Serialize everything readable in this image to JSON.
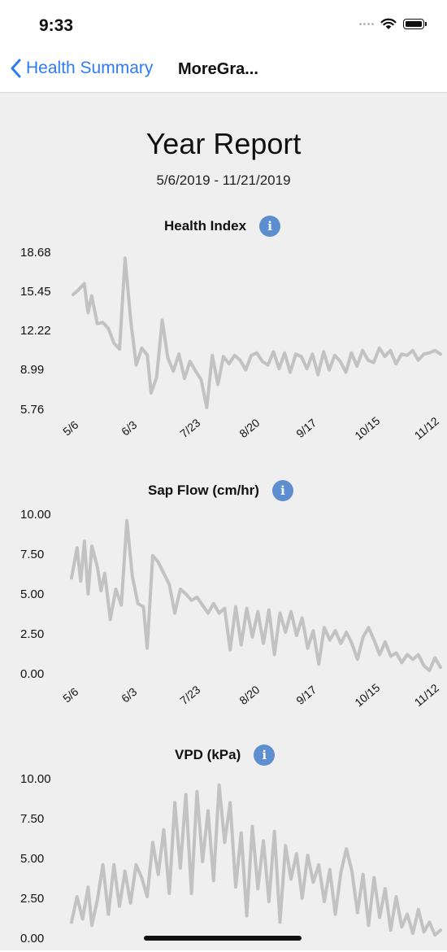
{
  "status_bar": {
    "time": "9:33",
    "icons": [
      "signal-icon",
      "wifi-icon",
      "battery-icon"
    ]
  },
  "nav": {
    "back_label": "Health Summary",
    "title": "MoreGra...",
    "back_color": "#2d7cf6"
  },
  "report": {
    "title": "Year Report",
    "date_range": "5/6/2019 - 11/21/2019"
  },
  "info_icon_glyph": "i",
  "chart_data": [
    {
      "type": "line",
      "title": "Health Index",
      "color": "#c2c2c2",
      "x_tick_labels": [
        "5/6",
        "6/3",
        "7/23",
        "8/20",
        "9/17",
        "10/15",
        "11/12"
      ],
      "y_tick_labels": [
        "18.68",
        "15.45",
        "12.22",
        "8.99",
        "5.76"
      ],
      "ylim": [
        5.76,
        18.68
      ],
      "x": [
        0,
        3,
        6,
        8,
        10,
        13,
        16,
        19,
        22,
        25,
        28,
        31,
        34,
        37,
        40,
        42,
        45,
        48,
        51,
        54,
        57,
        60,
        63,
        66,
        69,
        72,
        75,
        78,
        81,
        84,
        87,
        90,
        93,
        96,
        99,
        102,
        105,
        108,
        111,
        114,
        117,
        120,
        123,
        126,
        129,
        132,
        135,
        138,
        141,
        144,
        147,
        150,
        153,
        156,
        159,
        162,
        165,
        168,
        171,
        174,
        177,
        180,
        183,
        186,
        189,
        192,
        195,
        198
      ],
      "y": [
        15.2,
        15.6,
        16.1,
        13.7,
        15.1,
        12.8,
        12.9,
        12.4,
        11.2,
        10.7,
        18.2,
        13.1,
        9.4,
        10.8,
        10.2,
        7.1,
        8.4,
        13.1,
        10.0,
        8.9,
        10.3,
        8.3,
        9.7,
        8.9,
        8.2,
        5.9,
        10.2,
        7.8,
        10.1,
        9.5,
        10.2,
        9.8,
        9.0,
        10.2,
        10.4,
        9.7,
        9.4,
        10.5,
        9.1,
        10.4,
        8.8,
        10.3,
        10.1,
        9.1,
        10.3,
        8.6,
        10.5,
        9.0,
        10.2,
        9.7,
        8.8,
        10.4,
        9.3,
        10.6,
        9.8,
        9.6,
        10.8,
        10.1,
        10.6,
        9.5,
        10.3,
        10.2,
        10.6,
        9.8,
        10.3,
        10.4,
        10.6,
        10.3
      ]
    },
    {
      "type": "line",
      "title": "Sap Flow (cm/hr)",
      "color": "#c2c2c2",
      "x_tick_labels": [
        "5/6",
        "6/3",
        "7/23",
        "8/20",
        "9/17",
        "10/15",
        "11/12"
      ],
      "y_tick_labels": [
        "10.00",
        "7.50",
        "5.00",
        "2.50",
        "0.00"
      ],
      "ylim": [
        0,
        10
      ],
      "x": [
        0,
        3,
        5,
        7,
        9,
        11,
        14,
        16,
        18,
        21,
        24,
        27,
        30,
        33,
        36,
        39,
        41,
        44,
        47,
        50,
        53,
        56,
        59,
        62,
        65,
        68,
        71,
        74,
        77,
        80,
        83,
        86,
        89,
        92,
        95,
        98,
        101,
        104,
        107,
        110,
        113,
        116,
        119,
        122,
        125,
        128,
        131,
        134,
        137,
        140,
        143,
        146,
        149,
        152,
        155,
        158,
        161,
        164,
        167,
        170,
        173,
        176,
        179,
        182,
        185,
        188,
        191,
        194,
        197,
        200
      ],
      "y": [
        6.0,
        7.9,
        5.8,
        8.3,
        5.0,
        8.0,
        6.7,
        5.2,
        6.3,
        3.4,
        5.3,
        4.3,
        9.6,
        6.1,
        4.4,
        4.2,
        1.6,
        7.4,
        7.0,
        6.3,
        5.6,
        3.8,
        5.3,
        5.0,
        4.6,
        4.8,
        4.3,
        3.8,
        4.4,
        3.8,
        4.1,
        1.5,
        4.2,
        1.8,
        4.1,
        2.3,
        3.9,
        1.9,
        4.0,
        1.2,
        3.8,
        2.6,
        3.9,
        2.4,
        3.5,
        1.6,
        2.7,
        0.6,
        2.9,
        2.1,
        2.7,
        1.9,
        2.6,
        1.9,
        0.9,
        2.3,
        2.9,
        2.1,
        1.2,
        2.0,
        1.1,
        1.3,
        0.7,
        1.2,
        0.9,
        1.2,
        0.5,
        0.2,
        1.0,
        0.4
      ]
    },
    {
      "type": "line",
      "title": "VPD (kPa)",
      "color": "#c2c2c2",
      "x_tick_labels": [],
      "y_tick_labels": [
        "10.00",
        "7.50",
        "5.00",
        "2.50",
        "0.00"
      ],
      "ylim": [
        0,
        10
      ],
      "x": [
        0,
        3,
        6,
        9,
        11,
        14,
        17,
        20,
        23,
        26,
        29,
        32,
        35,
        38,
        41,
        44,
        47,
        50,
        53,
        56,
        59,
        62,
        65,
        68,
        71,
        74,
        77,
        80,
        83,
        86,
        89,
        92,
        95,
        98,
        101,
        104,
        107,
        110,
        113,
        116,
        119,
        122,
        125,
        128,
        131,
        134,
        137,
        140,
        143,
        146,
        149,
        152,
        155,
        158,
        161,
        164,
        167,
        170,
        173,
        176,
        179,
        182,
        185,
        188,
        191,
        194,
        197,
        200
      ],
      "y": [
        1.0,
        2.6,
        1.2,
        3.2,
        0.8,
        2.4,
        4.6,
        1.5,
        4.6,
        2.0,
        4.2,
        2.2,
        4.6,
        3.8,
        2.6,
        6.0,
        4.0,
        6.8,
        2.8,
        8.5,
        4.4,
        9.0,
        2.8,
        9.2,
        4.8,
        8.0,
        3.6,
        9.6,
        6.0,
        8.5,
        3.2,
        6.6,
        1.4,
        7.0,
        3.1,
        6.1,
        2.3,
        6.7,
        1.0,
        5.8,
        3.7,
        5.3,
        2.5,
        5.2,
        3.5,
        4.6,
        2.3,
        4.3,
        1.5,
        4.1,
        5.6,
        4.2,
        1.6,
        4.0,
        0.8,
        3.8,
        1.3,
        3.1,
        0.5,
        2.6,
        0.7,
        1.5,
        0.3,
        1.8,
        0.4,
        1.0,
        0.2,
        0.5
      ]
    }
  ]
}
